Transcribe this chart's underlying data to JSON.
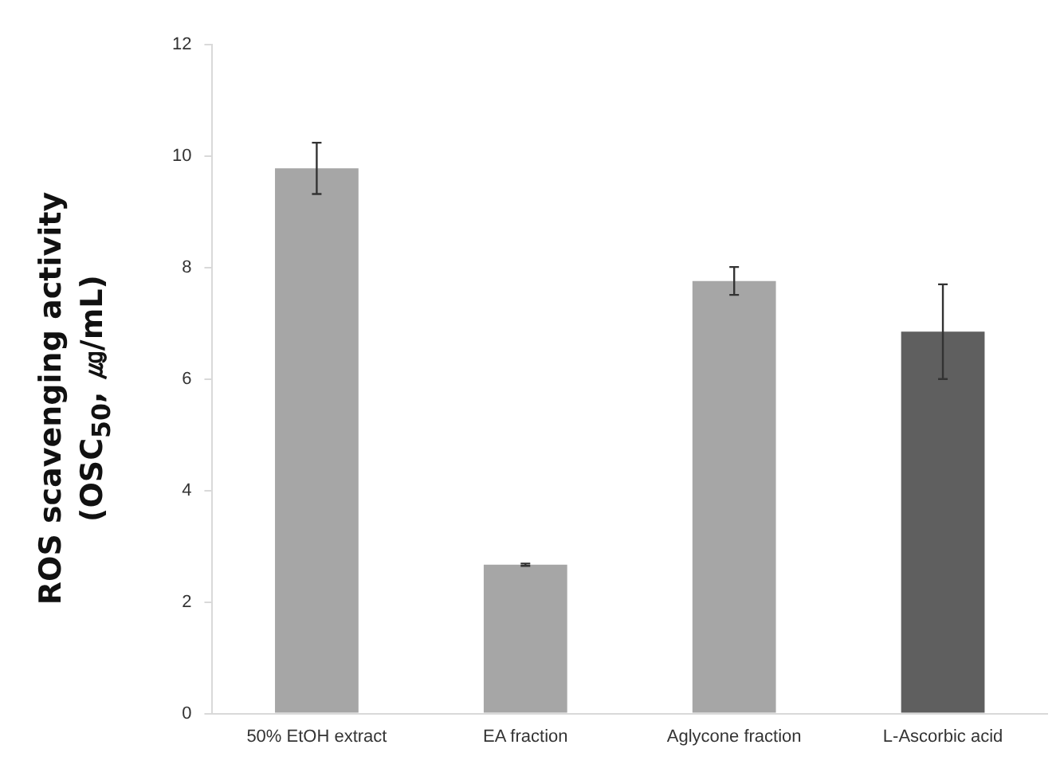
{
  "chart_data": {
    "type": "bar",
    "ylabel": "ROS scavenging activity\n(OSC$_{50}$, ㎍/mL)",
    "categories": [
      "50% EtOH extract",
      "EA fraction",
      "Aglycone fraction",
      "L-Ascorbic acid"
    ],
    "values": [
      9.78,
      2.67,
      7.76,
      6.85
    ],
    "errors": [
      0.46,
      0.02,
      0.25,
      0.85
    ],
    "colors": [
      "#a6a6a6",
      "#a6a6a6",
      "#a6a6a6",
      "#5f5f5f"
    ],
    "ylim": [
      0,
      12
    ],
    "yticks": [
      0,
      2,
      4,
      6,
      8,
      10,
      12
    ],
    "grid": false,
    "legend": false
  }
}
